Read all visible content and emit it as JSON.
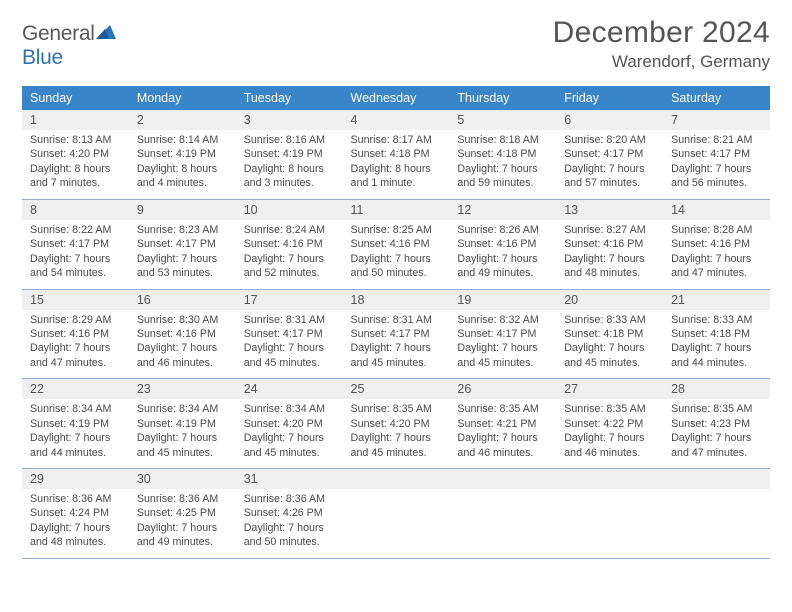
{
  "brand": {
    "general": "General",
    "blue": "Blue"
  },
  "title": "December 2024",
  "location": "Warendorf, Germany",
  "colors": {
    "header_bg": "#3885c9",
    "header_text": "#ffffff",
    "daynum_bg": "#efefef",
    "rule": "#8faecb",
    "text": "#4b4b4b",
    "logo_gray": "#585858",
    "logo_blue": "#2d72b8"
  },
  "weekdays": [
    "Sunday",
    "Monday",
    "Tuesday",
    "Wednesday",
    "Thursday",
    "Friday",
    "Saturday"
  ],
  "weeks": [
    {
      "nums": [
        "1",
        "2",
        "3",
        "4",
        "5",
        "6",
        "7"
      ],
      "cells": [
        {
          "sr": "Sunrise: 8:13 AM",
          "ss": "Sunset: 4:20 PM",
          "dl": "Daylight: 8 hours and 7 minutes."
        },
        {
          "sr": "Sunrise: 8:14 AM",
          "ss": "Sunset: 4:19 PM",
          "dl": "Daylight: 8 hours and 4 minutes."
        },
        {
          "sr": "Sunrise: 8:16 AM",
          "ss": "Sunset: 4:19 PM",
          "dl": "Daylight: 8 hours and 3 minutes."
        },
        {
          "sr": "Sunrise: 8:17 AM",
          "ss": "Sunset: 4:18 PM",
          "dl": "Daylight: 8 hours and 1 minute."
        },
        {
          "sr": "Sunrise: 8:18 AM",
          "ss": "Sunset: 4:18 PM",
          "dl": "Daylight: 7 hours and 59 minutes."
        },
        {
          "sr": "Sunrise: 8:20 AM",
          "ss": "Sunset: 4:17 PM",
          "dl": "Daylight: 7 hours and 57 minutes."
        },
        {
          "sr": "Sunrise: 8:21 AM",
          "ss": "Sunset: 4:17 PM",
          "dl": "Daylight: 7 hours and 56 minutes."
        }
      ]
    },
    {
      "nums": [
        "8",
        "9",
        "10",
        "11",
        "12",
        "13",
        "14"
      ],
      "cells": [
        {
          "sr": "Sunrise: 8:22 AM",
          "ss": "Sunset: 4:17 PM",
          "dl": "Daylight: 7 hours and 54 minutes."
        },
        {
          "sr": "Sunrise: 8:23 AM",
          "ss": "Sunset: 4:17 PM",
          "dl": "Daylight: 7 hours and 53 minutes."
        },
        {
          "sr": "Sunrise: 8:24 AM",
          "ss": "Sunset: 4:16 PM",
          "dl": "Daylight: 7 hours and 52 minutes."
        },
        {
          "sr": "Sunrise: 8:25 AM",
          "ss": "Sunset: 4:16 PM",
          "dl": "Daylight: 7 hours and 50 minutes."
        },
        {
          "sr": "Sunrise: 8:26 AM",
          "ss": "Sunset: 4:16 PM",
          "dl": "Daylight: 7 hours and 49 minutes."
        },
        {
          "sr": "Sunrise: 8:27 AM",
          "ss": "Sunset: 4:16 PM",
          "dl": "Daylight: 7 hours and 48 minutes."
        },
        {
          "sr": "Sunrise: 8:28 AM",
          "ss": "Sunset: 4:16 PM",
          "dl": "Daylight: 7 hours and 47 minutes."
        }
      ]
    },
    {
      "nums": [
        "15",
        "16",
        "17",
        "18",
        "19",
        "20",
        "21"
      ],
      "cells": [
        {
          "sr": "Sunrise: 8:29 AM",
          "ss": "Sunset: 4:16 PM",
          "dl": "Daylight: 7 hours and 47 minutes."
        },
        {
          "sr": "Sunrise: 8:30 AM",
          "ss": "Sunset: 4:16 PM",
          "dl": "Daylight: 7 hours and 46 minutes."
        },
        {
          "sr": "Sunrise: 8:31 AM",
          "ss": "Sunset: 4:17 PM",
          "dl": "Daylight: 7 hours and 45 minutes."
        },
        {
          "sr": "Sunrise: 8:31 AM",
          "ss": "Sunset: 4:17 PM",
          "dl": "Daylight: 7 hours and 45 minutes."
        },
        {
          "sr": "Sunrise: 8:32 AM",
          "ss": "Sunset: 4:17 PM",
          "dl": "Daylight: 7 hours and 45 minutes."
        },
        {
          "sr": "Sunrise: 8:33 AM",
          "ss": "Sunset: 4:18 PM",
          "dl": "Daylight: 7 hours and 45 minutes."
        },
        {
          "sr": "Sunrise: 8:33 AM",
          "ss": "Sunset: 4:18 PM",
          "dl": "Daylight: 7 hours and 44 minutes."
        }
      ]
    },
    {
      "nums": [
        "22",
        "23",
        "24",
        "25",
        "26",
        "27",
        "28"
      ],
      "cells": [
        {
          "sr": "Sunrise: 8:34 AM",
          "ss": "Sunset: 4:19 PM",
          "dl": "Daylight: 7 hours and 44 minutes."
        },
        {
          "sr": "Sunrise: 8:34 AM",
          "ss": "Sunset: 4:19 PM",
          "dl": "Daylight: 7 hours and 45 minutes."
        },
        {
          "sr": "Sunrise: 8:34 AM",
          "ss": "Sunset: 4:20 PM",
          "dl": "Daylight: 7 hours and 45 minutes."
        },
        {
          "sr": "Sunrise: 8:35 AM",
          "ss": "Sunset: 4:20 PM",
          "dl": "Daylight: 7 hours and 45 minutes."
        },
        {
          "sr": "Sunrise: 8:35 AM",
          "ss": "Sunset: 4:21 PM",
          "dl": "Daylight: 7 hours and 46 minutes."
        },
        {
          "sr": "Sunrise: 8:35 AM",
          "ss": "Sunset: 4:22 PM",
          "dl": "Daylight: 7 hours and 46 minutes."
        },
        {
          "sr": "Sunrise: 8:35 AM",
          "ss": "Sunset: 4:23 PM",
          "dl": "Daylight: 7 hours and 47 minutes."
        }
      ]
    },
    {
      "nums": [
        "29",
        "30",
        "31",
        "",
        "",
        "",
        ""
      ],
      "cells": [
        {
          "sr": "Sunrise: 8:36 AM",
          "ss": "Sunset: 4:24 PM",
          "dl": "Daylight: 7 hours and 48 minutes."
        },
        {
          "sr": "Sunrise: 8:36 AM",
          "ss": "Sunset: 4:25 PM",
          "dl": "Daylight: 7 hours and 49 minutes."
        },
        {
          "sr": "Sunrise: 8:36 AM",
          "ss": "Sunset: 4:26 PM",
          "dl": "Daylight: 7 hours and 50 minutes."
        },
        {
          "sr": "",
          "ss": "",
          "dl": ""
        },
        {
          "sr": "",
          "ss": "",
          "dl": ""
        },
        {
          "sr": "",
          "ss": "",
          "dl": ""
        },
        {
          "sr": "",
          "ss": "",
          "dl": ""
        }
      ]
    }
  ]
}
